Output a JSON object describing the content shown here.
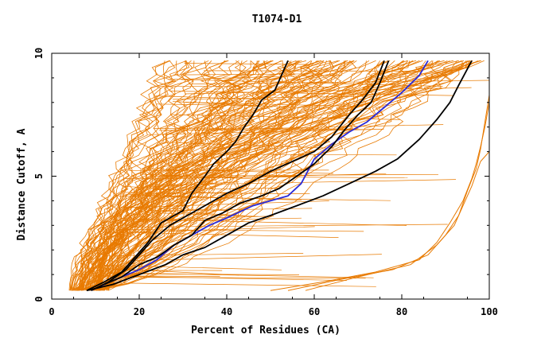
{
  "chart_data": {
    "type": "line",
    "title": "T1074-D1",
    "xlabel": "Percent of Residues (CA)",
    "ylabel": "Distance Cutoff, A",
    "xlim": [
      0,
      100
    ],
    "ylim": [
      0,
      10
    ],
    "x_ticks": [
      0,
      20,
      40,
      60,
      80,
      100
    ],
    "y_ticks": [
      0,
      5,
      10
    ],
    "grid": false,
    "legend": "none",
    "colors": {
      "background_models": "#e87a00",
      "highlight_black": "#000000",
      "highlight_blue": "#2a2ad8",
      "axes": "#000000"
    },
    "background_band": {
      "note_count": 120,
      "y_start": 0.35,
      "y_end": 9.7,
      "x_at_start_range": [
        4,
        13
      ],
      "x_at_end_range": [
        22,
        100
      ]
    },
    "series": [
      {
        "color": "#2a2ad8",
        "points": [
          [
            9,
            0.35
          ],
          [
            12,
            0.6
          ],
          [
            16,
            0.9
          ],
          [
            20,
            1.2
          ],
          [
            24,
            1.6
          ],
          [
            28,
            2.2
          ],
          [
            32,
            2.6
          ],
          [
            36,
            3.0
          ],
          [
            40,
            3.3
          ],
          [
            46,
            3.8
          ],
          [
            50,
            4.0
          ],
          [
            54,
            4.2
          ],
          [
            57,
            4.7
          ],
          [
            60,
            5.7
          ],
          [
            64,
            6.3
          ],
          [
            68,
            6.8
          ],
          [
            72,
            7.2
          ],
          [
            76,
            7.8
          ],
          [
            80,
            8.4
          ],
          [
            84,
            9.1
          ],
          [
            86,
            9.7
          ]
        ]
      },
      {
        "color": "#000000",
        "points": [
          [
            8,
            0.35
          ],
          [
            12,
            0.7
          ],
          [
            16,
            1.1
          ],
          [
            19,
            1.7
          ],
          [
            22,
            2.3
          ],
          [
            25,
            3.1
          ],
          [
            28,
            3.4
          ],
          [
            30,
            3.6
          ],
          [
            32,
            4.3
          ],
          [
            35,
            5.0
          ],
          [
            37,
            5.5
          ],
          [
            40,
            6.0
          ],
          [
            42,
            6.4
          ],
          [
            44,
            7.0
          ],
          [
            46,
            7.5
          ],
          [
            48,
            8.1
          ],
          [
            51,
            8.5
          ],
          [
            53,
            9.3
          ],
          [
            54,
            9.7
          ]
        ]
      },
      {
        "color": "#000000",
        "points": [
          [
            9,
            0.35
          ],
          [
            13,
            0.7
          ],
          [
            17,
            1.2
          ],
          [
            20,
            1.8
          ],
          [
            23,
            2.4
          ],
          [
            27,
            3.0
          ],
          [
            31,
            3.4
          ],
          [
            35,
            3.8
          ],
          [
            40,
            4.3
          ],
          [
            45,
            4.7
          ],
          [
            50,
            5.2
          ],
          [
            55,
            5.6
          ],
          [
            60,
            6.0
          ],
          [
            64,
            6.6
          ],
          [
            68,
            7.5
          ],
          [
            71,
            8.1
          ],
          [
            74,
            8.8
          ],
          [
            76,
            9.7
          ]
        ]
      },
      {
        "color": "#000000",
        "points": [
          [
            8,
            0.35
          ],
          [
            14,
            0.6
          ],
          [
            20,
            1.0
          ],
          [
            26,
            1.4
          ],
          [
            30,
            1.8
          ],
          [
            35,
            2.1
          ],
          [
            40,
            2.6
          ],
          [
            45,
            3.1
          ],
          [
            50,
            3.4
          ],
          [
            56,
            3.8
          ],
          [
            62,
            4.2
          ],
          [
            68,
            4.7
          ],
          [
            74,
            5.2
          ],
          [
            79,
            5.7
          ],
          [
            84,
            6.5
          ],
          [
            88,
            7.3
          ],
          [
            91,
            8.0
          ],
          [
            93,
            8.7
          ],
          [
            96,
            9.7
          ]
        ]
      },
      {
        "color": "#000000",
        "points": [
          [
            12,
            0.6
          ],
          [
            16,
            0.9
          ],
          [
            20,
            1.4
          ],
          [
            24,
            1.7
          ],
          [
            28,
            2.2
          ],
          [
            32,
            2.6
          ],
          [
            35,
            3.2
          ],
          [
            39,
            3.5
          ],
          [
            43,
            3.9
          ],
          [
            48,
            4.2
          ],
          [
            52,
            4.5
          ],
          [
            56,
            5.0
          ],
          [
            60,
            5.5
          ],
          [
            64,
            6.2
          ],
          [
            67,
            6.9
          ],
          [
            70,
            7.5
          ],
          [
            73,
            8.0
          ],
          [
            75,
            8.8
          ],
          [
            77,
            9.7
          ]
        ]
      }
    ],
    "outlier_series": [
      {
        "color": "#e87a00",
        "points": [
          [
            50,
            0.35
          ],
          [
            62,
            0.7
          ],
          [
            74,
            1.1
          ],
          [
            84,
            1.6
          ],
          [
            88,
            2.3
          ],
          [
            91,
            3.1
          ],
          [
            94,
            4.0
          ],
          [
            96,
            4.9
          ],
          [
            97,
            5.5
          ],
          [
            98,
            6.2
          ],
          [
            99,
            7.0
          ],
          [
            100,
            8.0
          ],
          [
            100,
            9.7
          ]
        ]
      },
      {
        "color": "#e87a00",
        "points": [
          [
            54,
            0.35
          ],
          [
            66,
            0.8
          ],
          [
            78,
            1.2
          ],
          [
            86,
            1.8
          ],
          [
            90,
            2.6
          ],
          [
            93,
            3.4
          ],
          [
            95,
            4.4
          ],
          [
            97,
            5.3
          ],
          [
            98,
            6.1
          ],
          [
            99,
            7.2
          ],
          [
            100,
            8.3
          ]
        ]
      },
      {
        "color": "#e87a00",
        "points": [
          [
            58,
            0.35
          ],
          [
            70,
            0.9
          ],
          [
            82,
            1.4
          ],
          [
            88,
            2.2
          ],
          [
            92,
            3.0
          ],
          [
            94,
            3.8
          ],
          [
            96,
            4.6
          ],
          [
            98,
            5.6
          ],
          [
            100,
            6.0
          ]
        ]
      }
    ]
  }
}
